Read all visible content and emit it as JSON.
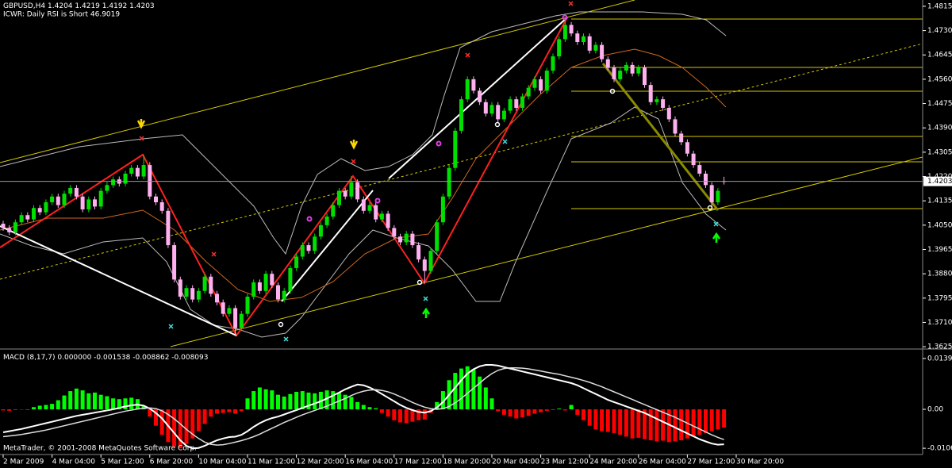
{
  "footer": "MetaTrader, © 2001-2008 MetaQuotes Software Corp.",
  "chart_data": [
    {
      "type": "candlestick",
      "title": "GBPUSD,H4",
      "subtitle": "ICWR: Daily RSI is Short 46.9019",
      "categories": [
        "2 Mar 2009",
        null,
        null,
        null,
        null,
        null,
        null,
        null,
        "4 Mar 04:00",
        null,
        null,
        null,
        null,
        null,
        null,
        null,
        "5 Mar 12:00",
        null,
        null,
        null,
        null,
        null,
        null,
        null,
        "6 Mar 20:00",
        null,
        null,
        null,
        null,
        null,
        null,
        null,
        "10 Mar 04:00",
        null,
        null,
        null,
        null,
        null,
        null,
        null,
        "11 Mar 12:00",
        null,
        null,
        null,
        null,
        null,
        null,
        null,
        "12 Mar 20:00",
        null,
        null,
        null,
        null,
        null,
        null,
        null,
        "16 Mar 04:00",
        null,
        null,
        null,
        null,
        null,
        null,
        null,
        "17 Mar 12:00",
        null,
        null,
        null,
        null,
        null,
        null,
        null,
        "18 Mar 20:00",
        null,
        null,
        null,
        null,
        null,
        null,
        null,
        "20 Mar 04:00",
        null,
        null,
        null,
        null,
        null,
        null,
        null,
        "23 Mar 12:00",
        null,
        null,
        null,
        null,
        null,
        null,
        null,
        "24 Mar 20:00",
        null,
        null,
        null,
        null,
        null,
        null,
        null,
        "26 Mar 04:00",
        null,
        null,
        null,
        null,
        null,
        null,
        null,
        "27 Mar 12:00",
        null,
        null,
        null,
        null,
        null,
        null,
        null,
        "30 Mar 20:00"
      ],
      "open": [
        1.4055,
        1.404,
        1.4025,
        1.406,
        1.4085,
        1.407,
        1.411,
        1.4095,
        1.413,
        1.415,
        1.412,
        1.416,
        1.418,
        1.415,
        1.4105,
        1.414,
        1.4115,
        1.417,
        1.419,
        1.421,
        1.4195,
        1.423,
        1.425,
        1.422,
        1.426,
        1.415,
        1.413,
        1.41,
        1.398,
        1.386,
        1.38,
        1.383,
        1.379,
        1.382,
        1.387,
        1.381,
        1.378,
        1.374,
        1.376,
        1.369,
        1.374,
        1.38,
        1.385,
        1.382,
        1.388,
        1.384,
        1.379,
        1.382,
        1.39,
        1.394,
        1.398,
        1.396,
        1.401,
        1.405,
        1.408,
        1.412,
        1.417,
        1.415,
        1.42,
        1.414,
        1.41,
        1.412,
        1.407,
        1.409,
        1.404,
        1.401,
        1.399,
        1.402,
        1.398,
        1.393,
        1.389,
        1.396,
        1.406,
        1.415,
        1.425,
        1.438,
        1.449,
        1.456,
        1.452,
        1.448,
        1.444,
        1.447,
        1.442,
        1.445,
        1.449,
        1.446,
        1.45,
        1.453,
        1.456,
        1.452,
        1.459,
        1.464,
        1.47,
        1.475,
        1.472,
        1.469,
        1.471,
        1.466,
        1.468,
        1.463,
        1.46,
        1.456,
        1.459,
        1.461,
        1.458,
        1.46,
        1.454,
        1.448,
        1.449,
        1.446,
        1.442,
        1.437,
        1.434,
        1.43,
        1.426,
        1.423,
        1.419,
        1.413,
        1.4204,
        null,
        null
      ],
      "high": [
        1.4065,
        1.405,
        1.407,
        1.4095,
        1.4095,
        1.412,
        1.412,
        1.414,
        1.416,
        1.416,
        1.417,
        1.419,
        1.419,
        1.416,
        1.415,
        1.415,
        1.418,
        1.42,
        1.422,
        1.422,
        1.424,
        1.426,
        1.426,
        1.4296,
        1.427,
        1.416,
        1.414,
        1.411,
        1.399,
        1.387,
        1.384,
        1.384,
        1.383,
        1.388,
        1.388,
        1.382,
        1.379,
        1.377,
        1.377,
        1.375,
        1.381,
        1.386,
        1.386,
        1.389,
        1.389,
        1.385,
        1.383,
        1.391,
        1.395,
        1.399,
        1.399,
        1.402,
        1.406,
        1.409,
        1.413,
        1.418,
        1.418,
        1.4222,
        1.421,
        1.415,
        1.413,
        1.413,
        1.41,
        1.41,
        1.405,
        1.402,
        1.403,
        1.403,
        1.399,
        1.394,
        1.397,
        1.407,
        1.416,
        1.426,
        1.439,
        1.45,
        1.457,
        1.457,
        1.453,
        1.449,
        1.448,
        1.448,
        1.446,
        1.45,
        1.45,
        1.451,
        1.454,
        1.457,
        1.457,
        1.46,
        1.465,
        1.471,
        1.4776,
        1.476,
        1.473,
        1.472,
        1.472,
        1.469,
        1.469,
        1.464,
        1.461,
        1.46,
        1.462,
        1.462,
        1.461,
        1.461,
        1.455,
        1.45,
        1.45,
        1.447,
        1.443,
        1.438,
        1.435,
        1.431,
        1.427,
        1.424,
        1.42,
        1.418,
        1.4219,
        null,
        null
      ],
      "low": [
        1.403,
        1.4015,
        1.4015,
        1.405,
        1.406,
        1.406,
        1.4085,
        1.4085,
        1.412,
        1.411,
        1.411,
        1.415,
        1.414,
        1.4095,
        1.4095,
        1.4105,
        1.4105,
        1.416,
        1.418,
        1.4185,
        1.4185,
        1.422,
        1.421,
        1.421,
        1.414,
        1.412,
        1.409,
        1.397,
        1.385,
        1.379,
        1.379,
        1.378,
        1.378,
        1.381,
        1.38,
        1.377,
        1.373,
        1.373,
        1.3664,
        1.368,
        1.373,
        1.379,
        1.381,
        1.381,
        1.383,
        1.378,
        1.378,
        1.381,
        1.389,
        1.393,
        1.395,
        1.395,
        1.4,
        1.404,
        1.407,
        1.411,
        1.414,
        1.414,
        1.413,
        1.409,
        1.409,
        1.406,
        1.406,
        1.403,
        1.4,
        1.398,
        1.398,
        1.397,
        1.392,
        1.3847,
        1.388,
        1.395,
        1.405,
        1.414,
        1.424,
        1.437,
        1.448,
        1.451,
        1.447,
        1.443,
        1.443,
        1.441,
        1.441,
        1.444,
        1.445,
        1.445,
        1.449,
        1.452,
        1.451,
        1.451,
        1.458,
        1.463,
        1.469,
        1.471,
        1.468,
        1.468,
        1.465,
        1.465,
        1.462,
        1.459,
        1.455,
        1.455,
        1.458,
        1.457,
        1.457,
        1.453,
        1.447,
        1.447,
        1.445,
        1.441,
        1.436,
        1.433,
        1.429,
        1.425,
        1.422,
        1.418,
        1.411,
        1.412,
        1.4192,
        null,
        null
      ],
      "close": [
        1.404,
        1.4025,
        1.406,
        1.4085,
        1.407,
        1.411,
        1.4095,
        1.413,
        1.415,
        1.412,
        1.416,
        1.418,
        1.415,
        1.4105,
        1.414,
        1.4115,
        1.417,
        1.419,
        1.421,
        1.4195,
        1.423,
        1.425,
        1.422,
        1.426,
        1.415,
        1.413,
        1.41,
        1.398,
        1.386,
        1.38,
        1.383,
        1.379,
        1.382,
        1.387,
        1.381,
        1.378,
        1.374,
        1.376,
        1.369,
        1.374,
        1.38,
        1.385,
        1.382,
        1.388,
        1.384,
        1.379,
        1.382,
        1.39,
        1.394,
        1.398,
        1.396,
        1.401,
        1.405,
        1.408,
        1.412,
        1.417,
        1.415,
        1.42,
        1.414,
        1.41,
        1.412,
        1.407,
        1.409,
        1.404,
        1.401,
        1.399,
        1.402,
        1.398,
        1.393,
        1.389,
        1.396,
        1.406,
        1.415,
        1.425,
        1.438,
        1.449,
        1.456,
        1.452,
        1.448,
        1.444,
        1.447,
        1.442,
        1.445,
        1.449,
        1.446,
        1.45,
        1.453,
        1.456,
        1.452,
        1.459,
        1.464,
        1.47,
        1.475,
        1.472,
        1.469,
        1.471,
        1.466,
        1.468,
        1.463,
        1.46,
        1.456,
        1.459,
        1.461,
        1.458,
        1.46,
        1.454,
        1.448,
        1.449,
        1.446,
        1.442,
        1.437,
        1.434,
        1.43,
        1.426,
        1.423,
        1.419,
        1.413,
        1.417,
        1.4203,
        null,
        null
      ],
      "colors": {
        "up": "#00e000",
        "down": "#ffb0ee"
      },
      "ylim": [
        1.3617,
        1.4837
      ],
      "yticks": [
        1.4815,
        {
          "value": 1.473,
          "label": "1.4730"
        },
        1.4645,
        {
          "value": 1.456,
          "label": "1.4560"
        },
        1.4475,
        {
          "value": 1.439,
          "label": "1.4390"
        },
        1.4305,
        {
          "value": 1.422,
          "label": "1.4220"
        },
        1.4135,
        {
          "value": 1.405,
          "label": "1.4050"
        },
        1.3965,
        {
          "value": 1.388,
          "label": "1.3880"
        },
        1.3795,
        {
          "value": 1.371,
          "label": "1.3710"
        },
        1.3625
      ]
    },
    {
      "type": "macd",
      "title": "MACD (8,17,7)",
      "readout": "0.000000 -0.001538 -0.008862 -0.008093",
      "histogram": {
        "colors": {
          "positive": "#00ff00",
          "negative": "#ff0000"
        },
        "values": [
          -0.0003,
          -0.0004,
          -0.0002,
          -0.0001,
          -0.0002,
          0.0006,
          0.001,
          0.0012,
          0.0015,
          0.0025,
          0.0038,
          0.005,
          0.0057,
          0.0052,
          0.0044,
          0.0046,
          0.004,
          0.0036,
          0.003,
          0.0028,
          0.003,
          0.0032,
          0.0028,
          0.001,
          -0.002,
          -0.0045,
          -0.007,
          -0.009,
          -0.0102,
          -0.0107,
          -0.0095,
          -0.008,
          -0.006,
          -0.004,
          -0.002,
          -0.0012,
          -0.001,
          -0.0008,
          -0.0012,
          -0.0005,
          0.003,
          0.005,
          0.006,
          0.0055,
          0.0052,
          0.004,
          0.0035,
          0.0042,
          0.0048,
          0.005,
          0.0046,
          0.0044,
          0.0048,
          0.0052,
          0.005,
          0.0046,
          0.004,
          0.0034,
          0.002,
          0.0012,
          0.0006,
          0.0003,
          -0.001,
          -0.002,
          -0.003,
          -0.0036,
          -0.0038,
          -0.0034,
          -0.003,
          -0.0028,
          -0.001,
          0.002,
          0.005,
          0.008,
          0.01,
          0.0112,
          0.0118,
          0.011,
          0.009,
          0.006,
          0.003,
          -0.0005,
          -0.0015,
          -0.002,
          -0.0025,
          -0.0022,
          -0.0018,
          -0.0012,
          -0.0008,
          -0.0004,
          -0.0002,
          0.0002,
          -0.0003,
          0.0012,
          -0.0015,
          -0.003,
          -0.0045,
          -0.0055,
          -0.006,
          -0.0062,
          -0.0065,
          -0.007,
          -0.0075,
          -0.008,
          -0.0078,
          -0.0082,
          -0.0085,
          -0.0088,
          -0.0086,
          -0.009,
          -0.0088,
          -0.0085,
          -0.008,
          -0.0075,
          -0.007,
          -0.0065,
          -0.006,
          -0.0055,
          -0.005,
          null,
          null
        ]
      },
      "series": [
        {
          "color": "#ffffff",
          "values": [
            -0.0063,
            -0.006,
            -0.0057,
            -0.0054,
            -0.005,
            -0.0046,
            -0.0042,
            -0.0038,
            -0.0034,
            -0.003,
            -0.0026,
            -0.0022,
            -0.0018,
            -0.0015,
            -0.0012,
            -0.0009,
            -0.0006,
            -0.0003,
            0.0,
            0.0004,
            0.0008,
            0.0011,
            0.0013,
            0.001,
            0.0002,
            -0.001,
            -0.0025,
            -0.0045,
            -0.0065,
            -0.0085,
            -0.01,
            -0.0107,
            -0.0106,
            -0.01,
            -0.0092,
            -0.0085,
            -0.008,
            -0.0076,
            -0.0075,
            -0.007,
            -0.006,
            -0.0048,
            -0.0038,
            -0.003,
            -0.0024,
            -0.002,
            -0.0014,
            -0.0008,
            -0.0002,
            0.0004,
            0.001,
            0.0016,
            0.0022,
            0.003,
            0.0038,
            0.0046,
            0.0055,
            0.0062,
            0.0068,
            0.0066,
            0.006,
            0.0052,
            0.0042,
            0.0032,
            0.0022,
            0.0012,
            0.0004,
            -0.0002,
            -0.0007,
            -0.0009,
            -0.0005,
            0.0005,
            0.002,
            0.004,
            0.006,
            0.008,
            0.0098,
            0.011,
            0.0118,
            0.0122,
            0.0122,
            0.012,
            0.0116,
            0.0112,
            0.0108,
            0.0104,
            0.01,
            0.0096,
            0.0092,
            0.0088,
            0.0084,
            0.008,
            0.0076,
            0.0072,
            0.0066,
            0.0058,
            0.005,
            0.0042,
            0.0034,
            0.0026,
            0.002,
            0.0014,
            0.0008,
            0.0002,
            -0.0004,
            -0.001,
            -0.0018,
            -0.0026,
            -0.0034,
            -0.0042,
            -0.005,
            -0.0058,
            -0.0066,
            -0.0074,
            -0.0082,
            -0.0088,
            -0.0094,
            -0.0097,
            -0.0096,
            null,
            null
          ]
        },
        {
          "color": "#dddddd",
          "values": [
            -0.0075,
            -0.0073,
            -0.0071,
            -0.0069,
            -0.0066,
            -0.0063,
            -0.006,
            -0.0057,
            -0.0053,
            -0.0049,
            -0.0045,
            -0.0041,
            -0.0037,
            -0.0033,
            -0.0029,
            -0.0025,
            -0.0021,
            -0.0017,
            -0.0013,
            -0.0009,
            -0.0005,
            -0.0002,
            0.0001,
            0.0003,
            0.0004,
            0.0002,
            -0.0004,
            -0.0014,
            -0.0026,
            -0.004,
            -0.0055,
            -0.0068,
            -0.008,
            -0.009,
            -0.0096,
            -0.0098,
            -0.0097,
            -0.0094,
            -0.009,
            -0.0086,
            -0.0081,
            -0.0075,
            -0.0068,
            -0.006,
            -0.0052,
            -0.0044,
            -0.0036,
            -0.0029,
            -0.0022,
            -0.0015,
            -0.0009,
            -0.0003,
            0.0003,
            0.0009,
            0.0016,
            0.0023,
            0.003,
            0.0038,
            0.0045,
            0.005,
            0.0053,
            0.0054,
            0.0052,
            0.0048,
            0.0042,
            0.0035,
            0.0027,
            0.0019,
            0.0012,
            0.0006,
            0.0002,
            0.0,
            0.0002,
            0.0008,
            0.0018,
            0.003,
            0.0044,
            0.0058,
            0.0072,
            0.0086,
            0.0098,
            0.0107,
            0.0112,
            0.0114,
            0.0114,
            0.0113,
            0.0111,
            0.0108,
            0.0105,
            0.0102,
            0.0099,
            0.0096,
            0.0092,
            0.0088,
            0.0084,
            0.0079,
            0.0074,
            0.0068,
            0.0062,
            0.0055,
            0.0048,
            0.0041,
            0.0034,
            0.0027,
            0.002,
            0.0013,
            0.0006,
            -0.0001,
            -0.0008,
            -0.0015,
            -0.0022,
            -0.003,
            -0.0038,
            -0.0046,
            -0.0054,
            -0.0062,
            -0.007,
            -0.0077,
            -0.0083,
            null,
            null
          ]
        }
      ],
      "ylim": [
        -0.0124,
        0.0159
      ],
      "yticks": [
        0.01396,
        {
          "value": 0,
          "label": "0.00"
        },
        -0.01068
      ]
    }
  ]
}
